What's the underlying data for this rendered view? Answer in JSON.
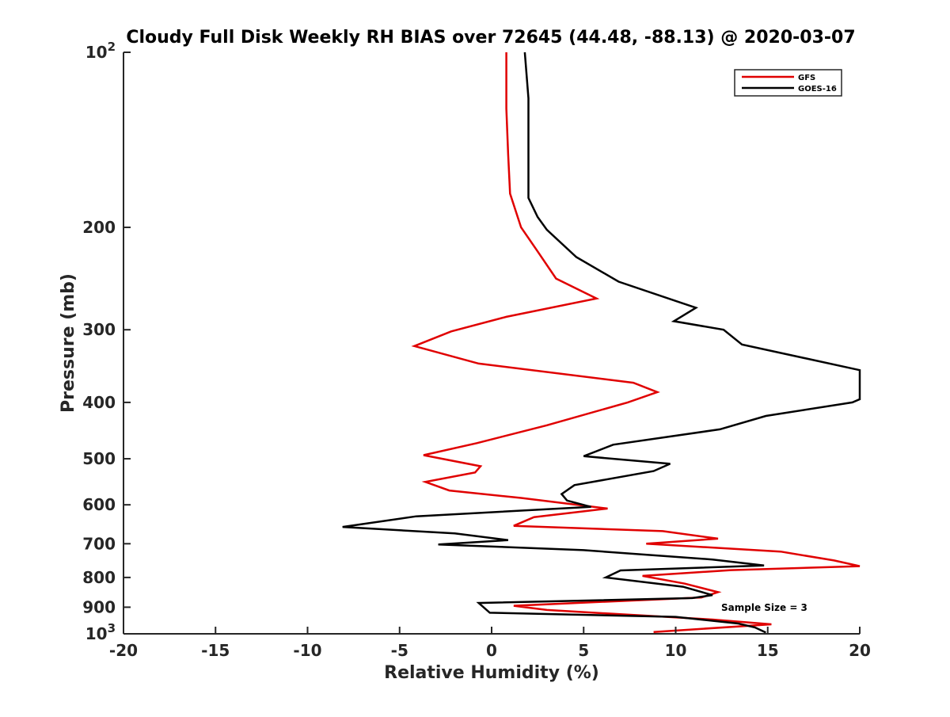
{
  "chart_data": {
    "type": "line",
    "title": "Cloudy Full Disk Weekly RH BIAS over 72645 (44.48, -88.13) @ 2020-03-07",
    "xlabel": "Relative Humidity (%)",
    "ylabel": "Pressure (mb)",
    "xlim": [
      -20,
      20
    ],
    "ylim": [
      100,
      1000
    ],
    "y_scale": "log",
    "y_reversed": true,
    "grid": false,
    "legend_position": "top-right",
    "annotation": "Sample Size = 3",
    "x_ticks": [
      {
        "value": -20,
        "label": "-20"
      },
      {
        "value": -15,
        "label": "-15"
      },
      {
        "value": -10,
        "label": "-10"
      },
      {
        "value": -5,
        "label": "-5"
      },
      {
        "value": 0,
        "label": "0"
      },
      {
        "value": 5,
        "label": "5"
      },
      {
        "value": 10,
        "label": "10"
      },
      {
        "value": 15,
        "label": "15"
      },
      {
        "value": 20,
        "label": "20"
      }
    ],
    "y_ticks": [
      {
        "value": 100,
        "label": "10",
        "sup": "2"
      },
      {
        "value": 200,
        "label": "200",
        "sup": ""
      },
      {
        "value": 300,
        "label": "300",
        "sup": ""
      },
      {
        "value": 400,
        "label": "400",
        "sup": ""
      },
      {
        "value": 500,
        "label": "500",
        "sup": ""
      },
      {
        "value": 600,
        "label": "600",
        "sup": ""
      },
      {
        "value": 700,
        "label": "700",
        "sup": ""
      },
      {
        "value": 800,
        "label": "800",
        "sup": ""
      },
      {
        "value": 900,
        "label": "900",
        "sup": ""
      },
      {
        "value": 1000,
        "label": "10",
        "sup": "3"
      }
    ],
    "series": [
      {
        "name": "GFS",
        "color": "#e00000",
        "points": [
          [
            0.8,
            100
          ],
          [
            0.8,
            125
          ],
          [
            0.9,
            150
          ],
          [
            1.0,
            175
          ],
          [
            1.6,
            200
          ],
          [
            2.5,
            220
          ],
          [
            3.5,
            245
          ],
          [
            5.7,
            265
          ],
          [
            0.8,
            285
          ],
          [
            -2.2,
            302
          ],
          [
            -4.2,
            320
          ],
          [
            -0.7,
            343
          ],
          [
            7.7,
            370
          ],
          [
            9.0,
            384
          ],
          [
            7.4,
            400
          ],
          [
            3.0,
            438
          ],
          [
            -0.8,
            470
          ],
          [
            -3.7,
            493
          ],
          [
            -0.6,
            515
          ],
          [
            -0.9,
            528
          ],
          [
            -3.6,
            548
          ],
          [
            -2.3,
            567
          ],
          [
            1.6,
            584
          ],
          [
            6.3,
            609
          ],
          [
            2.3,
            630
          ],
          [
            1.2,
            652
          ],
          [
            9.3,
            666
          ],
          [
            12.3,
            686
          ],
          [
            8.4,
            700
          ],
          [
            15.7,
            722
          ],
          [
            18.6,
            748
          ],
          [
            20.0,
            765
          ],
          [
            13.0,
            777
          ],
          [
            8.2,
            795
          ],
          [
            10.5,
            820
          ],
          [
            12.3,
            848
          ],
          [
            11.4,
            866
          ],
          [
            1.2,
            895
          ],
          [
            3.0,
            910
          ],
          [
            12.0,
            945
          ],
          [
            15.2,
            963
          ],
          [
            11.5,
            980
          ],
          [
            8.8,
            993
          ]
        ]
      },
      {
        "name": "GOES-16",
        "color": "#000000",
        "points": [
          [
            1.8,
            100
          ],
          [
            2.0,
            120
          ],
          [
            2.0,
            150
          ],
          [
            2.0,
            178
          ],
          [
            2.5,
            192
          ],
          [
            3.0,
            202
          ],
          [
            4.6,
            225
          ],
          [
            6.9,
            248
          ],
          [
            11.1,
            275
          ],
          [
            9.9,
            290
          ],
          [
            12.6,
            300
          ],
          [
            13.6,
            318
          ],
          [
            20.0,
            352
          ],
          [
            20.0,
            395
          ],
          [
            19.6,
            400
          ],
          [
            14.9,
            422
          ],
          [
            12.4,
            445
          ],
          [
            6.6,
            473
          ],
          [
            5.0,
            495
          ],
          [
            9.7,
            510
          ],
          [
            8.8,
            525
          ],
          [
            4.5,
            555
          ],
          [
            3.8,
            575
          ],
          [
            4.1,
            590
          ],
          [
            5.4,
            605
          ],
          [
            -4.1,
            628
          ],
          [
            -8.1,
            655
          ],
          [
            -2.0,
            672
          ],
          [
            0.9,
            690
          ],
          [
            -2.9,
            702
          ],
          [
            5.0,
            718
          ],
          [
            12.0,
            745
          ],
          [
            14.8,
            763
          ],
          [
            7.0,
            778
          ],
          [
            6.2,
            800
          ],
          [
            10.4,
            830
          ],
          [
            12.0,
            858
          ],
          [
            10.9,
            868
          ],
          [
            -0.7,
            885
          ],
          [
            -0.1,
            920
          ],
          [
            10.0,
            935
          ],
          [
            13.4,
            960
          ],
          [
            14.3,
            975
          ],
          [
            14.9,
            995
          ]
        ]
      }
    ]
  },
  "legend": {
    "items": [
      {
        "name": "GFS",
        "color": "#e00000"
      },
      {
        "name": "GOES-16",
        "color": "#000000"
      }
    ]
  }
}
